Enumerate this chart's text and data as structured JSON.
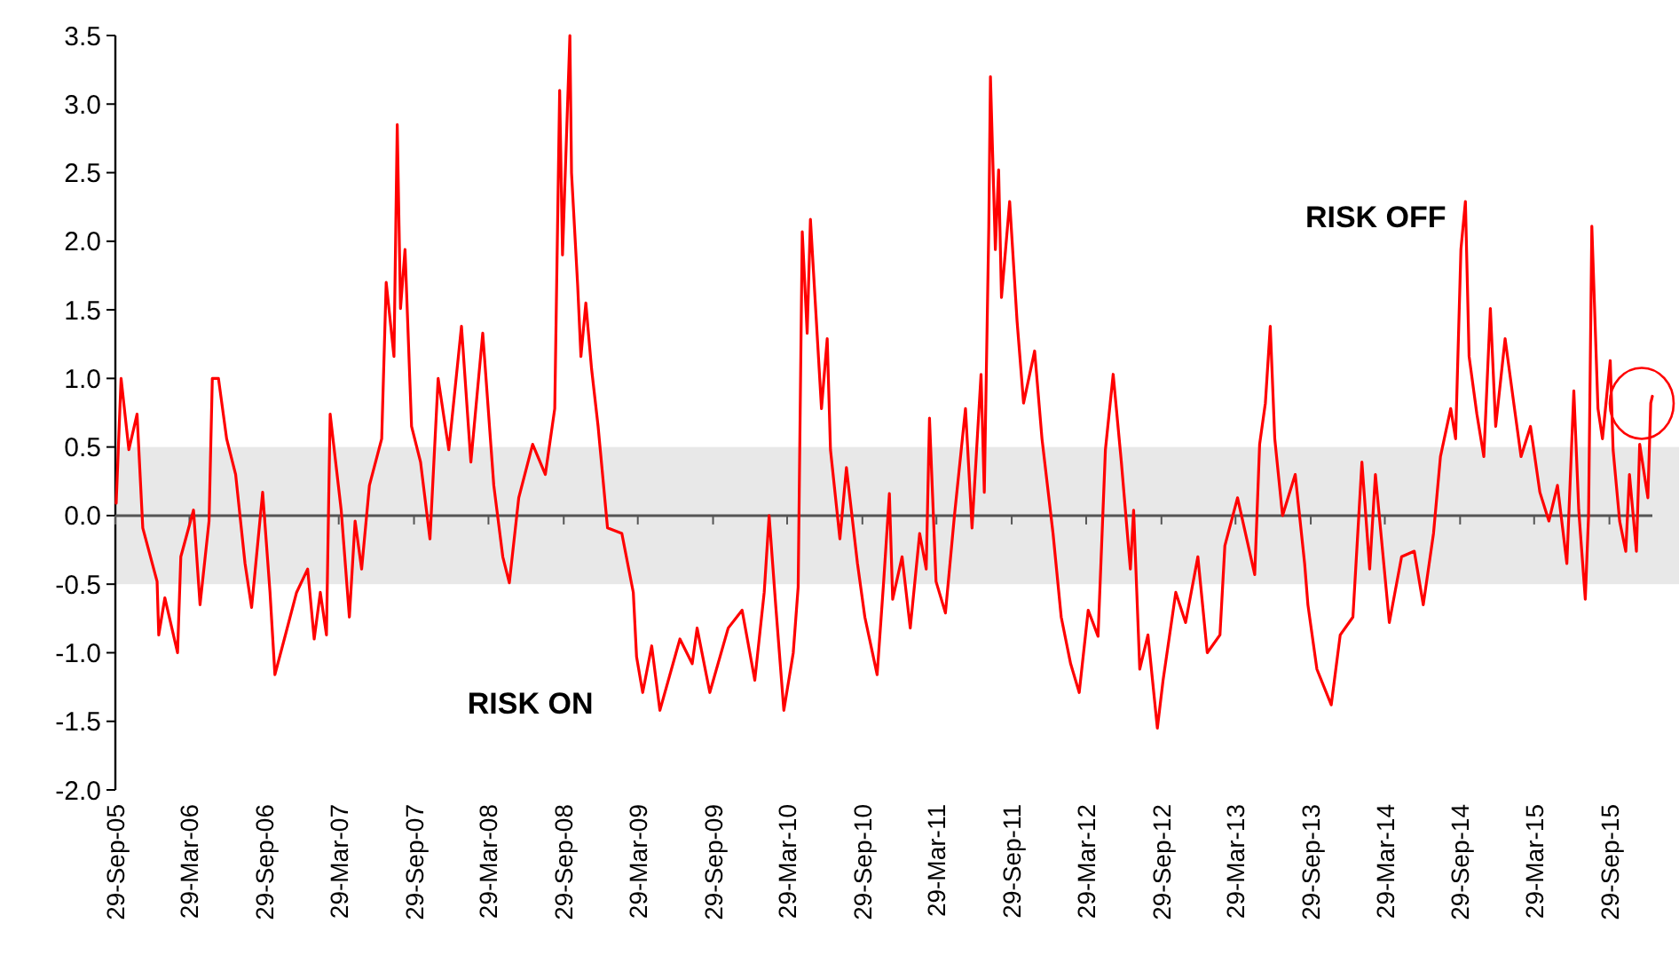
{
  "chart_data": {
    "type": "line",
    "x": [
      "2005-10-01",
      "2005-10-13",
      "2005-11-01",
      "2005-11-21",
      "2005-12-05",
      "2006-01-09",
      "2006-01-13",
      "2006-01-28",
      "2006-02-28",
      "2006-03-08",
      "2006-04-08",
      "2006-04-24",
      "2006-05-16",
      "2006-05-24",
      "2006-06-08",
      "2006-06-28",
      "2006-07-20",
      "2006-08-12",
      "2006-08-28",
      "2006-09-24",
      "2006-10-12",
      "2006-10-24",
      "2006-11-16",
      "2006-12-16",
      "2007-01-12",
      "2007-01-28",
      "2007-02-12",
      "2007-02-27",
      "2007-03-08",
      "2007-04-04",
      "2007-04-24",
      "2007-05-08",
      "2007-05-24",
      "2007-06-12",
      "2007-07-12",
      "2007-07-23",
      "2007-08-11",
      "2007-08-19",
      "2007-08-27",
      "2007-09-07",
      "2007-09-23",
      "2007-10-15",
      "2007-11-07",
      "2007-11-27",
      "2007-12-23",
      "2008-01-23",
      "2008-02-15",
      "2008-03-15",
      "2008-04-11",
      "2008-05-03",
      "2008-05-19",
      "2008-06-11",
      "2008-07-15",
      "2008-08-15",
      "2008-09-07",
      "2008-09-19",
      "2008-09-26",
      "2008-10-14",
      "2008-10-18",
      "2008-11-02",
      "2008-11-10",
      "2008-11-22",
      "2008-12-06",
      "2008-12-22",
      "2009-01-14",
      "2009-02-18",
      "2009-03-18",
      "2009-03-26",
      "2009-04-10",
      "2009-05-02",
      "2009-05-22",
      "2009-07-10",
      "2009-08-09",
      "2009-08-21",
      "2009-09-21",
      "2009-11-05",
      "2009-12-09",
      "2010-01-09",
      "2010-02-01",
      "2010-02-13",
      "2010-03-01",
      "2010-03-21",
      "2010-04-13",
      "2010-04-25",
      "2010-05-05",
      "2010-05-17",
      "2010-05-25",
      "2010-06-21",
      "2010-07-05",
      "2010-07-13",
      "2010-08-05",
      "2010-08-21",
      "2010-09-17",
      "2010-10-05",
      "2010-11-04",
      "2010-11-20",
      "2010-12-04",
      "2010-12-12",
      "2011-01-04",
      "2011-01-24",
      "2011-02-16",
      "2011-03-04",
      "2011-03-12",
      "2011-03-28",
      "2011-04-20",
      "2011-05-12",
      "2011-06-08",
      "2011-06-24",
      "2011-07-16",
      "2011-07-24",
      "2011-08-04",
      "2011-08-08",
      "2011-08-20",
      "2011-08-28",
      "2011-09-04",
      "2011-09-24",
      "2011-10-12",
      "2011-10-28",
      "2011-11-24",
      "2011-12-12",
      "2012-01-08",
      "2012-01-28",
      "2012-02-20",
      "2012-03-12",
      "2012-04-03",
      "2012-04-27",
      "2012-05-15",
      "2012-06-03",
      "2012-06-23",
      "2012-07-15",
      "2012-07-23",
      "2012-08-07",
      "2012-08-27",
      "2012-09-19",
      "2012-10-03",
      "2012-11-03",
      "2012-11-27",
      "2012-12-27",
      "2013-01-19",
      "2013-02-19",
      "2013-03-03",
      "2013-04-03",
      "2013-05-15",
      "2013-05-27",
      "2013-06-10",
      "2013-06-22",
      "2013-07-03",
      "2013-07-22",
      "2013-08-22",
      "2013-09-14",
      "2013-09-22",
      "2013-10-14",
      "2013-11-18",
      "2013-12-10",
      "2014-01-10",
      "2014-02-01",
      "2014-02-20",
      "2014-03-06",
      "2014-04-09",
      "2014-05-09",
      "2014-06-09",
      "2014-07-01",
      "2014-07-26",
      "2014-08-12",
      "2014-09-06",
      "2014-09-18",
      "2014-10-01",
      "2014-10-12",
      "2014-10-21",
      "2014-11-09",
      "2014-11-26",
      "2014-12-12",
      "2014-12-25",
      "2015-01-17",
      "2015-02-09",
      "2015-02-25",
      "2015-03-20",
      "2015-04-12",
      "2015-05-04",
      "2015-05-25",
      "2015-06-17",
      "2015-07-04",
      "2015-07-16",
      "2015-08-01",
      "2015-08-09",
      "2015-08-17",
      "2015-09-01",
      "2015-09-12",
      "2015-10-01",
      "2015-10-08",
      "2015-10-24",
      "2015-11-08",
      "2015-11-17",
      "2015-12-04",
      "2015-12-12",
      "2016-01-01",
      "2016-01-08",
      "2016-01-12"
    ],
    "series": [
      {
        "color": "#ff0000",
        "values": [
          0.09,
          1.0,
          0.48,
          0.74,
          -0.09,
          -0.48,
          -0.87,
          -0.6,
          -1.0,
          -0.3,
          0.04,
          -0.65,
          -0.04,
          1.0,
          1.0,
          0.56,
          0.3,
          -0.35,
          -0.67,
          0.17,
          -0.56,
          -1.16,
          -0.9,
          -0.56,
          -0.39,
          -0.9,
          -0.56,
          -0.87,
          0.74,
          0.04,
          -0.74,
          -0.04,
          -0.39,
          0.22,
          0.56,
          1.7,
          1.16,
          2.85,
          1.51,
          1.94,
          0.65,
          0.39,
          -0.17,
          1.0,
          0.48,
          1.38,
          0.39,
          1.33,
          0.22,
          -0.3,
          -0.49,
          0.13,
          0.52,
          0.3,
          0.78,
          3.1,
          1.9,
          3.5,
          2.5,
          1.68,
          1.16,
          1.55,
          1.07,
          0.65,
          -0.09,
          -0.13,
          -0.56,
          -1.03,
          -1.29,
          -0.95,
          -1.42,
          -0.9,
          -1.08,
          -0.82,
          -1.29,
          -0.82,
          -0.69,
          -1.2,
          -0.56,
          0.0,
          -0.65,
          -1.42,
          -1.0,
          -0.52,
          2.07,
          1.33,
          2.16,
          0.78,
          1.29,
          0.48,
          -0.17,
          0.35,
          -0.35,
          -0.74,
          -1.16,
          -0.48,
          0.16,
          -0.61,
          -0.3,
          -0.82,
          -0.13,
          -0.39,
          0.71,
          -0.48,
          -0.71,
          0.0,
          0.78,
          -0.09,
          1.03,
          0.17,
          2.11,
          3.2,
          1.94,
          2.52,
          1.59,
          2.29,
          1.42,
          0.82,
          1.2,
          0.56,
          -0.13,
          -0.74,
          -1.08,
          -1.29,
          -0.69,
          -0.88,
          0.48,
          1.03,
          0.39,
          -0.39,
          0.04,
          -1.12,
          -0.87,
          -1.55,
          -1.2,
          -0.56,
          -0.78,
          -0.3,
          -1.0,
          -0.87,
          -0.22,
          0.13,
          -0.43,
          0.52,
          0.82,
          1.38,
          0.56,
          0.0,
          0.3,
          -0.35,
          -0.65,
          -1.12,
          -1.38,
          -0.87,
          -0.74,
          0.39,
          -0.39,
          0.3,
          -0.78,
          -0.3,
          -0.26,
          -0.65,
          -0.13,
          0.43,
          0.78,
          0.56,
          1.94,
          2.29,
          1.16,
          0.74,
          0.43,
          1.51,
          0.65,
          1.29,
          0.78,
          0.43,
          0.65,
          0.17,
          -0.04,
          0.22,
          -0.35,
          0.91,
          0.04,
          -0.61,
          0.0,
          2.11,
          0.78,
          0.56,
          1.13,
          0.48,
          -0.04,
          -0.26,
          0.3,
          -0.26,
          0.52,
          0.13,
          0.82,
          0.87
        ]
      }
    ],
    "xlim": [
      "2005-09-29",
      "2016-01-12"
    ],
    "xticks": [
      {
        "value": "2005-09-29",
        "label": "29-Sep-05"
      },
      {
        "value": "2006-03-29",
        "label": "29-Mar-06"
      },
      {
        "value": "2006-09-29",
        "label": "29-Sep-06"
      },
      {
        "value": "2007-03-29",
        "label": "29-Mar-07"
      },
      {
        "value": "2007-09-29",
        "label": "29-Sep-07"
      },
      {
        "value": "2008-03-29",
        "label": "29-Mar-08"
      },
      {
        "value": "2008-09-29",
        "label": "29-Sep-08"
      },
      {
        "value": "2009-03-29",
        "label": "29-Mar-09"
      },
      {
        "value": "2009-09-29",
        "label": "29-Sep-09"
      },
      {
        "value": "2010-03-29",
        "label": "29-Mar-10"
      },
      {
        "value": "2010-09-29",
        "label": "29-Sep-10"
      },
      {
        "value": "2011-03-29",
        "label": "29-Mar-11"
      },
      {
        "value": "2011-09-29",
        "label": "29-Sep-11"
      },
      {
        "value": "2012-03-29",
        "label": "29-Mar-12"
      },
      {
        "value": "2012-09-29",
        "label": "29-Sep-12"
      },
      {
        "value": "2013-03-29",
        "label": "29-Mar-13"
      },
      {
        "value": "2013-09-29",
        "label": "29-Sep-13"
      },
      {
        "value": "2014-03-29",
        "label": "29-Mar-14"
      },
      {
        "value": "2014-09-29",
        "label": "29-Sep-14"
      },
      {
        "value": "2015-03-29",
        "label": "29-Mar-15"
      },
      {
        "value": "2015-09-29",
        "label": "29-Sep-15"
      }
    ],
    "ylim": [
      -2,
      3.5
    ],
    "yticks": [
      {
        "value": -2,
        "label": "-2.0"
      },
      {
        "value": -1.5,
        "label": "-1.5"
      },
      {
        "value": -1,
        "label": "-1.0"
      },
      {
        "value": -0.5,
        "label": "-0.5"
      },
      {
        "value": 0,
        "label": "0.0"
      },
      {
        "value": 0.5,
        "label": "0.5"
      },
      {
        "value": 1,
        "label": "1.0"
      },
      {
        "value": 1.5,
        "label": "1.5"
      },
      {
        "value": 2,
        "label": "2.0"
      },
      {
        "value": 2.5,
        "label": "2.5"
      },
      {
        "value": 3,
        "label": "3.0"
      },
      {
        "value": 3.5,
        "label": "3.5"
      }
    ],
    "bands": [
      {
        "axis": "y",
        "from": -0.5,
        "to": 0.5,
        "color": "#e8e8e8"
      }
    ],
    "annotations": [
      "RISK OFF",
      "RISK ON"
    ],
    "marker": "none",
    "line_style": "solid"
  }
}
